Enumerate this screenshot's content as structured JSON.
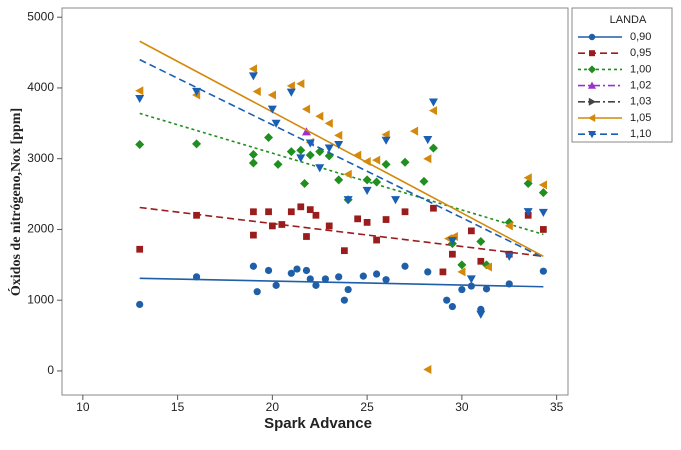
{
  "chart_data": {
    "type": "scatter",
    "x_label": "Spark Advance",
    "y_label": "Óxidos de nitrógeno,Nox [ppm]",
    "legend_title": "LANDA",
    "legend": "outside-right",
    "xlim": [
      8.9,
      35.6
    ],
    "xticks": [
      10,
      15,
      20,
      25,
      30,
      35
    ],
    "ylim": [
      -340,
      5130
    ],
    "yticks": [
      0,
      1000,
      2000,
      3000,
      4000,
      5000
    ],
    "series": [
      {
        "name": "0,90",
        "color": "#1f5fa8",
        "marker": "circle",
        "line_style": "solid",
        "x": [
          13,
          16,
          19,
          19.2,
          19.8,
          20.2,
          21,
          21.3,
          21.8,
          22,
          22.3,
          22.8,
          23.5,
          23.8,
          24,
          24.8,
          25.5,
          26,
          27,
          28.2,
          29.2,
          29.5,
          30,
          30.5,
          31,
          31.3,
          32.5,
          34.3
        ],
        "values": [
          940,
          1330,
          1480,
          1120,
          1420,
          1210,
          1380,
          1440,
          1420,
          1300,
          1210,
          1300,
          1330,
          1000,
          1150,
          1340,
          1370,
          1290,
          1480,
          1400,
          1000,
          910,
          1150,
          1200,
          870,
          1160,
          1230,
          1410
        ],
        "fit_x": [
          13,
          34.3
        ],
        "fit_y": [
          1310,
          1190
        ]
      },
      {
        "name": "0,95",
        "color": "#9b1c1c",
        "marker": "square",
        "line_style": "dashed",
        "x": [
          13,
          16,
          19,
          19,
          19.8,
          20,
          20.5,
          21,
          21.5,
          21.8,
          22,
          22.3,
          23,
          23.8,
          24.5,
          25,
          25.5,
          26,
          27,
          28.5,
          29,
          29.5,
          30.5,
          31,
          32.5,
          33.5,
          34.3
        ],
        "values": [
          1720,
          2200,
          2250,
          1920,
          2250,
          2050,
          2070,
          2250,
          2320,
          1900,
          2280,
          2200,
          2050,
          1700,
          2150,
          2100,
          1850,
          2140,
          2250,
          2300,
          1400,
          1650,
          1980,
          1550,
          1650,
          2200,
          2000
        ],
        "fit_x": [
          13,
          34.3
        ],
        "fit_y": [
          2310,
          1620
        ]
      },
      {
        "name": "1,00",
        "color": "#1f8f1f",
        "marker": "diamond",
        "line_style": "dotted",
        "x": [
          13,
          16,
          19,
          19,
          19.8,
          20.3,
          21,
          21.5,
          21.7,
          22,
          22.5,
          23,
          23.5,
          24,
          25,
          25.5,
          26,
          27,
          28,
          28.5,
          29.5,
          30,
          31,
          31.3,
          32.5,
          33.5,
          34.3
        ],
        "values": [
          3200,
          3210,
          3060,
          2940,
          3300,
          2920,
          3100,
          3120,
          2650,
          3050,
          3100,
          3040,
          2700,
          2420,
          2700,
          2670,
          2920,
          2950,
          2680,
          3150,
          1800,
          1500,
          1830,
          1500,
          2100,
          2650,
          2520
        ],
        "fit_x": [
          13,
          34.3
        ],
        "fit_y": [
          3640,
          1930
        ]
      },
      {
        "name": "1,02",
        "color": "#9932cc",
        "marker": "triangle-up",
        "line_style": "dashdot",
        "x": [
          21.8
        ],
        "values": [
          3380
        ]
      },
      {
        "name": "1,03",
        "color": "#444444",
        "marker": "triangle-right",
        "line_style": "dashdot",
        "x": [],
        "values": []
      },
      {
        "name": "1,05",
        "color": "#d4890a",
        "marker": "triangle-left",
        "line_style": "solid",
        "x": [
          13,
          16,
          19,
          19.2,
          20,
          21,
          21.5,
          21.8,
          22,
          22.5,
          23,
          23.5,
          24,
          24.5,
          25,
          25.5,
          26,
          27.5,
          28.2,
          28.5,
          29.3,
          29.6,
          30,
          31.4,
          32.5,
          33.5,
          34.3,
          28.2
        ],
        "values": [
          3960,
          3900,
          4270,
          3950,
          3900,
          4030,
          4060,
          3700,
          3230,
          3600,
          3500,
          3330,
          2780,
          3050,
          2960,
          2980,
          3340,
          3390,
          3000,
          3680,
          1870,
          1900,
          1400,
          1470,
          2050,
          2730,
          2630,
          20
        ],
        "fit_x": [
          13,
          34.3
        ],
        "fit_y": [
          4660,
          1620
        ]
      },
      {
        "name": "1,10",
        "color": "#1a5fb4",
        "marker": "triangle-down",
        "line_style": "dashed",
        "x": [
          13,
          16,
          19,
          20,
          20.2,
          21,
          21.5,
          22,
          22.5,
          23,
          23.5,
          24,
          25,
          26,
          26.5,
          28.2,
          28.5,
          29.5,
          30.5,
          31,
          32.5,
          33.5,
          34.3
        ],
        "values": [
          3850,
          3950,
          4170,
          3700,
          3500,
          3940,
          3010,
          3220,
          2870,
          3150,
          3200,
          2420,
          2550,
          3260,
          2420,
          3270,
          3800,
          1840,
          1300,
          800,
          1620,
          2250,
          2240
        ],
        "fit_x": [
          13,
          34.3
        ],
        "fit_y": [
          4400,
          1600
        ]
      }
    ]
  }
}
